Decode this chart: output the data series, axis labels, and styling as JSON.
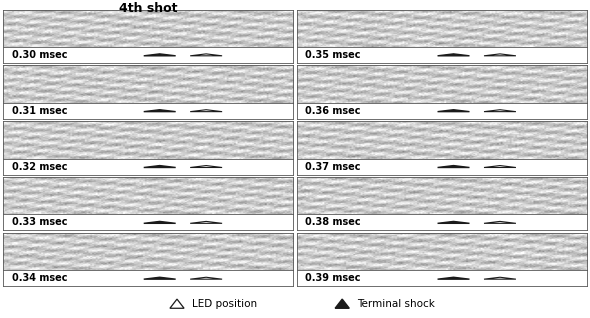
{
  "title": "4th shot",
  "title_fontsize": 9,
  "title_fontweight": "bold",
  "left_labels": [
    "0.30 msec",
    "0.31 msec",
    "0.32 msec",
    "0.33 msec",
    "0.34 msec"
  ],
  "right_labels": [
    "0.35 msec",
    "0.36 msec",
    "0.37 msec",
    "0.38 msec",
    "0.39 msec"
  ],
  "legend_led": "△  LED position",
  "legend_terminal": "▲  Terminal shock",
  "bg_color": "#ffffff",
  "label_fontsize": 7.0,
  "legend_fontsize": 7.5,
  "n_rows": 5,
  "fig_width": 5.9,
  "fig_height": 3.18
}
